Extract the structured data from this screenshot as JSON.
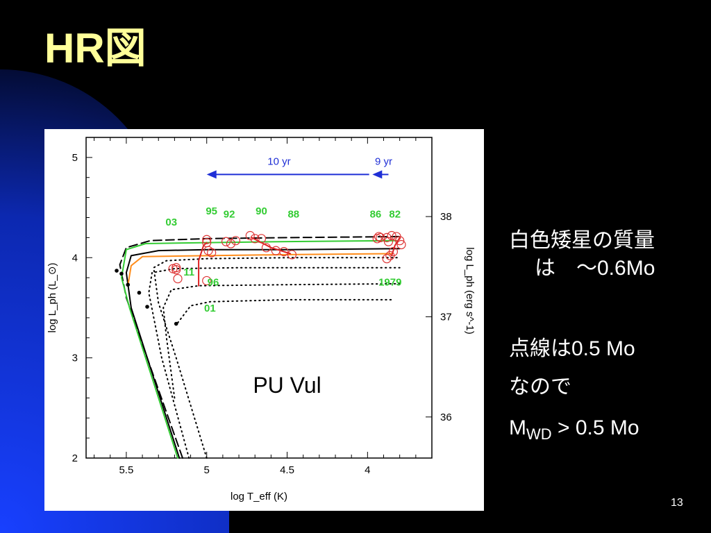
{
  "slide": {
    "title": "HR図",
    "page_number": "13",
    "notes": {
      "line1": "白色矮星の質量",
      "line2": "は　～0.6Mo",
      "line3": "点線は0.5 Mo",
      "line4": "なので",
      "mwd_main": "M",
      "mwd_sub": "WD",
      "mwd_rest": " > 0.5 Mo"
    },
    "colors": {
      "title": "#ffff99",
      "background_dark": "#000000",
      "background_blue": "#1133cc"
    }
  },
  "chart_data": {
    "type": "line",
    "annotation": "PU Vul",
    "xlabel": "log T_eff (K)",
    "ylabel": "log L_ph (L_⊙)",
    "y2label": "log L_ph (erg s^-1)",
    "xlim": [
      5.75,
      3.6
    ],
    "ylim": [
      2,
      5.2
    ],
    "x_ticks": [
      "5.5",
      "5",
      "4.5",
      "4"
    ],
    "y_ticks": [
      "2",
      "3",
      "4",
      "5"
    ],
    "y2_ticks": [
      "36",
      "37",
      "38"
    ],
    "year_labels_green": [
      {
        "text": "03",
        "x": 5.22,
        "y": 4.32
      },
      {
        "text": "95",
        "x": 4.97,
        "y": 4.43
      },
      {
        "text": "92",
        "x": 4.86,
        "y": 4.4
      },
      {
        "text": "90",
        "x": 4.66,
        "y": 4.43
      },
      {
        "text": "88",
        "x": 4.46,
        "y": 4.4
      },
      {
        "text": "86",
        "x": 3.95,
        "y": 4.4
      },
      {
        "text": "82",
        "x": 3.83,
        "y": 4.4
      },
      {
        "text": "11",
        "x": 5.11,
        "y": 3.82
      },
      {
        "text": "96",
        "x": 4.96,
        "y": 3.72
      },
      {
        "text": "01",
        "x": 4.98,
        "y": 3.46
      },
      {
        "text": "1979",
        "x": 3.86,
        "y": 3.72
      }
    ],
    "arrows": [
      {
        "label": "10 yr",
        "from": 3.99,
        "to": 5.0,
        "y": 4.83
      },
      {
        "label": "9 yr",
        "from": 3.87,
        "to": 3.97,
        "y": 4.83
      }
    ],
    "series": [
      {
        "color": "#000000",
        "style": "dashed",
        "points": [
          [
            5.15,
            2
          ],
          [
            5.37,
            3
          ],
          [
            5.5,
            3.6
          ],
          [
            5.54,
            3.93
          ],
          [
            5.5,
            4.1
          ],
          [
            5.35,
            4.17
          ],
          [
            5.0,
            4.19
          ],
          [
            4.5,
            4.2
          ],
          [
            3.8,
            4.21
          ]
        ]
      },
      {
        "color": "#000000",
        "style": "solid",
        "points": [
          [
            5.17,
            2
          ],
          [
            5.33,
            2.8
          ],
          [
            5.47,
            3.5
          ],
          [
            5.5,
            3.85
          ],
          [
            5.47,
            4.02
          ],
          [
            5.3,
            4.07
          ],
          [
            5.0,
            4.08
          ],
          [
            4.5,
            4.08
          ],
          [
            3.8,
            4.09
          ]
        ]
      },
      {
        "color": "#33cc33",
        "style": "solid",
        "points": [
          [
            5.18,
            2
          ],
          [
            5.34,
            2.8
          ],
          [
            5.48,
            3.5
          ],
          [
            5.53,
            3.8
          ],
          [
            5.5,
            4.08
          ],
          [
            5.38,
            4.14
          ],
          [
            5.0,
            4.15
          ],
          [
            4.5,
            4.16
          ],
          [
            3.82,
            4.17
          ]
        ]
      },
      {
        "color": "#ff8c1a",
        "style": "solid",
        "points": [
          [
            5.49,
            3.72
          ],
          [
            5.47,
            3.92
          ],
          [
            5.4,
            4.01
          ],
          [
            5.0,
            4.02
          ],
          [
            4.5,
            4.03
          ],
          [
            3.85,
            4.04
          ]
        ]
      },
      {
        "color": "#000000",
        "style": "dotted",
        "points": [
          [
            5.0,
            2
          ],
          [
            5.19,
            3
          ],
          [
            5.3,
            3.55
          ],
          [
            5.33,
            3.9
          ],
          [
            5.25,
            3.97
          ],
          [
            5.0,
            3.99
          ],
          [
            4.5,
            4.0
          ],
          [
            3.8,
            4.0
          ]
        ]
      },
      {
        "color": "#000000",
        "style": "dotted",
        "points": [
          [
            5.11,
            2
          ],
          [
            5.28,
            3
          ],
          [
            5.36,
            3.65
          ],
          [
            5.34,
            3.85
          ],
          [
            5.2,
            3.89
          ],
          [
            4.8,
            3.9
          ],
          [
            4.0,
            3.9
          ],
          [
            3.8,
            3.9
          ]
        ]
      },
      {
        "color": "#000000",
        "style": "dotted",
        "points": [
          [
            5.2,
            2.6
          ],
          [
            5.25,
            3.2
          ],
          [
            5.27,
            3.5
          ],
          [
            5.22,
            3.68
          ],
          [
            5.05,
            3.72
          ],
          [
            4.5,
            3.73
          ],
          [
            3.8,
            3.74
          ]
        ]
      },
      {
        "color": "#000000",
        "style": "dotted",
        "points": [
          [
            5.18,
            3.35
          ],
          [
            5.1,
            3.52
          ],
          [
            4.98,
            3.56
          ],
          [
            4.5,
            3.58
          ],
          [
            3.85,
            3.58
          ]
        ]
      },
      {
        "color": "#dd2222",
        "style": "solid",
        "points": [
          [
            5.05,
            3.72
          ],
          [
            5.05,
            3.97
          ],
          [
            5.02,
            4.12
          ],
          [
            5.0,
            4.15
          ]
        ]
      },
      {
        "color": "#dd2222",
        "style": "solid",
        "points": [
          [
            4.72,
            4.2
          ],
          [
            4.6,
            4.1
          ],
          [
            4.48,
            4.04
          ]
        ]
      },
      {
        "color": "#dd2222",
        "style": "solid",
        "points": [
          [
            3.85,
            4.02
          ],
          [
            3.83,
            4.12
          ],
          [
            3.8,
            4.2
          ]
        ]
      }
    ],
    "start_points": [
      [
        5.56,
        3.87
      ],
      [
        5.53,
        3.84
      ],
      [
        5.49,
        3.73
      ],
      [
        5.42,
        3.65
      ],
      [
        5.37,
        3.51
      ],
      [
        5.19,
        3.34
      ]
    ],
    "observations": [
      [
        5.21,
        3.89
      ],
      [
        5.19,
        3.88
      ],
      [
        5.18,
        3.79
      ],
      [
        5.19,
        3.9
      ],
      [
        5.0,
        3.77
      ],
      [
        5.0,
        4.15
      ],
      [
        5.0,
        4.18
      ],
      [
        4.97,
        4.05
      ],
      [
        4.99,
        4.07
      ],
      [
        4.88,
        4.16
      ],
      [
        4.85,
        4.14
      ],
      [
        4.82,
        4.17
      ],
      [
        4.73,
        4.22
      ],
      [
        4.7,
        4.19
      ],
      [
        4.66,
        4.19
      ],
      [
        4.63,
        4.1
      ],
      [
        4.57,
        4.07
      ],
      [
        4.52,
        4.06
      ],
      [
        4.47,
        4.03
      ],
      [
        3.94,
        4.19
      ],
      [
        3.93,
        4.21
      ],
      [
        3.88,
        4.2
      ],
      [
        3.85,
        4.22
      ],
      [
        3.82,
        4.21
      ],
      [
        3.8,
        4.17
      ],
      [
        3.79,
        4.13
      ],
      [
        3.84,
        4.06
      ],
      [
        3.86,
        4.02
      ],
      [
        3.88,
        3.99
      ],
      [
        3.92,
        4.2
      ],
      [
        3.87,
        4.16
      ]
    ]
  }
}
